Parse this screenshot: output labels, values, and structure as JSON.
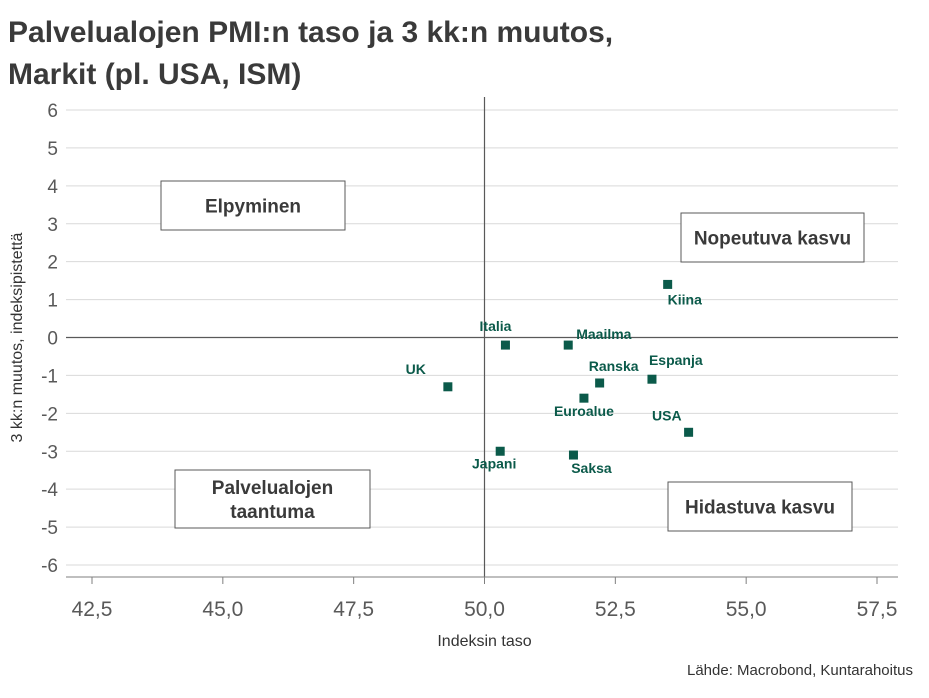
{
  "title_line1": "Palvelualojen PMI:n taso ja 3 kk:n muutos,",
  "title_line2": "Markit (pl. USA, ISM)",
  "source": "Lähde: Macrobond, Kuntarahoitus",
  "colors": {
    "marker": "#0b5a4a",
    "grid": "#d9d9d9",
    "axis": "#7f7f7f"
  },
  "chart_data": {
    "type": "scatter",
    "title": "Palvelualojen PMI:n taso ja 3 kk:n muutos, Markit (pl. USA, ISM)",
    "xlabel": "Indeksin taso",
    "ylabel": "3 kk:n muutos, indeksipistettä",
    "xlim": [
      42.5,
      57.5
    ],
    "ylim": [
      -6,
      6
    ],
    "x_ticks": [
      "42,5",
      "45,0",
      "47,5",
      "50,0",
      "52,5",
      "55,0",
      "57,5"
    ],
    "y_ticks": [
      "6",
      "5",
      "4",
      "3",
      "2",
      "1",
      "0",
      "-1",
      "-2",
      "-3",
      "-4",
      "-5",
      "-6"
    ],
    "grid": "horizontal",
    "reference_lines": {
      "x": 50,
      "y": 0
    },
    "points": [
      {
        "name": "Kiina",
        "x": 53.5,
        "y": 1.4,
        "label_pos": "below-right"
      },
      {
        "name": "Italia",
        "x": 50.4,
        "y": -0.2,
        "label_pos": "above-left"
      },
      {
        "name": "Maailma",
        "x": 51.6,
        "y": -0.2,
        "label_pos": "above-right"
      },
      {
        "name": "UK",
        "x": 49.3,
        "y": -1.3,
        "label_pos": "above-left"
      },
      {
        "name": "Ranska",
        "x": 52.2,
        "y": -1.2,
        "label_pos": "above"
      },
      {
        "name": "Espanja",
        "x": 53.2,
        "y": -1.1,
        "label_pos": "above-right"
      },
      {
        "name": "Euroalue",
        "x": 51.9,
        "y": -1.6,
        "label_pos": "below"
      },
      {
        "name": "USA",
        "x": 53.9,
        "y": -2.5,
        "label_pos": "above-left"
      },
      {
        "name": "Japani",
        "x": 50.3,
        "y": -3.0,
        "label_pos": "below"
      },
      {
        "name": "Saksa",
        "x": 51.7,
        "y": -3.1,
        "label_pos": "below-right"
      }
    ],
    "quadrant_labels": [
      {
        "id": "elpyminen",
        "lines": [
          "Elpyminen"
        ]
      },
      {
        "id": "nopeutuva",
        "lines": [
          "Nopeutuva kasvu"
        ]
      },
      {
        "id": "taantuma",
        "lines": [
          "Palvelualojen",
          "taantuma"
        ]
      },
      {
        "id": "hidastuva",
        "lines": [
          "Hidastuva kasvu"
        ]
      }
    ]
  }
}
